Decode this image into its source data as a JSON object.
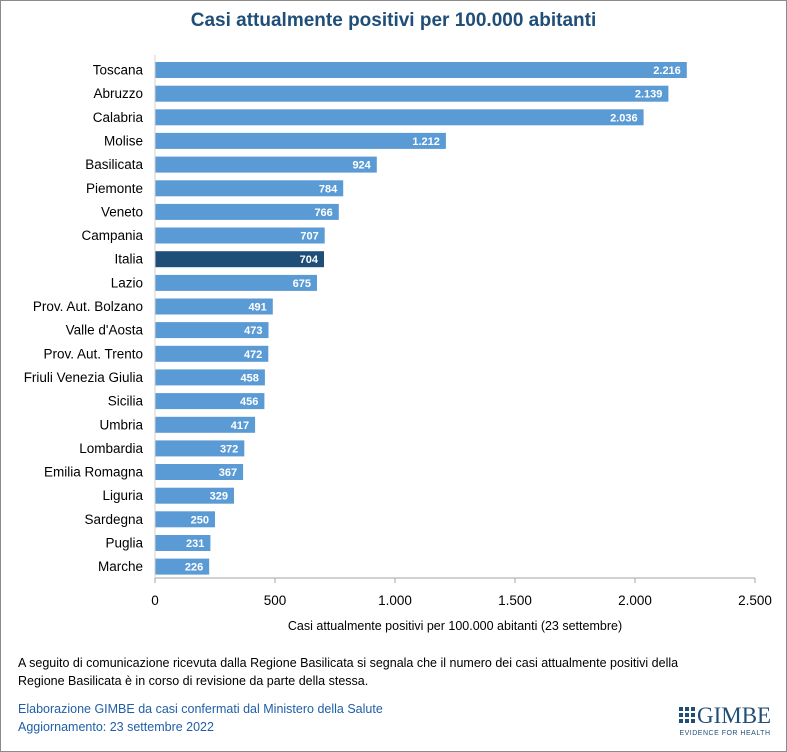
{
  "chart_data": {
    "type": "bar",
    "orientation": "horizontal",
    "title": "Casi attualmente positivi per 100.000 abitanti",
    "xlabel": "Casi attualmente positivi per 100.000 abitanti (23 settembre)",
    "ylabel": "",
    "xlim": [
      0,
      2500
    ],
    "x_ticks": [
      "0",
      "500",
      "1.000",
      "1.500",
      "2.000",
      "2.500"
    ],
    "categories": [
      "Toscana",
      "Abruzzo",
      "Calabria",
      "Molise",
      "Basilicata",
      "Piemonte",
      "Veneto",
      "Campania",
      "Italia",
      "Lazio",
      "Prov. Aut. Bolzano",
      "Valle d'Aosta",
      "Prov. Aut. Trento",
      "Friuli Venezia Giulia",
      "Sicilia",
      "Umbria",
      "Lombardia",
      "Emilia Romagna",
      "Liguria",
      "Sardegna",
      "Puglia",
      "Marche"
    ],
    "values": [
      2216,
      2139,
      2036,
      1212,
      924,
      784,
      766,
      707,
      704,
      675,
      491,
      473,
      472,
      458,
      456,
      417,
      372,
      367,
      329,
      250,
      231,
      226
    ],
    "value_labels": [
      "2.216",
      "2.139",
      "2.036",
      "1.212",
      "924",
      "784",
      "766",
      "707",
      "704",
      "675",
      "491",
      "473",
      "472",
      "458",
      "456",
      "417",
      "372",
      "367",
      "329",
      "250",
      "231",
      "226"
    ],
    "highlight_category": "Italia",
    "grid": false,
    "legend": "none",
    "colors": {
      "bar": "#5b9bd5",
      "highlight": "#1f4e79",
      "title": "#1f4e79"
    }
  },
  "note": {
    "line1": "A seguito di comunicazione ricevuta dalla Regione Basilicata si segnala che il numero dei casi attualmente positivi della",
    "line2": "Regione Basilicata è in corso di revisione da parte della stessa."
  },
  "credit": {
    "line1": "Elaborazione GIMBE da casi confermati dal Ministero della Salute",
    "line2": "Aggiornamento: 23 settembre 2022"
  },
  "logo": {
    "word": "GIMBE",
    "tagline": "EVIDENCE FOR HEALTH"
  }
}
